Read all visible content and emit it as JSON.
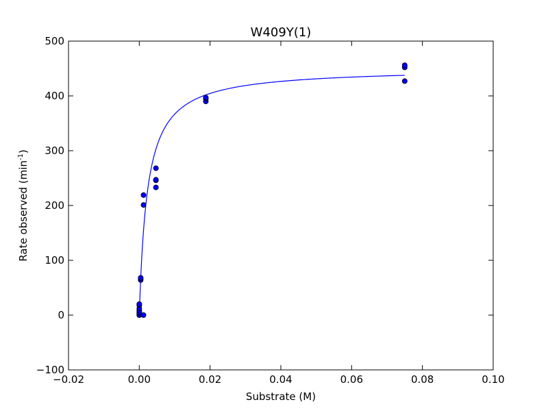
{
  "chart_data": {
    "type": "scatter",
    "title": "W409Y(1)",
    "xlabel": "Substrate (M)",
    "ylabel_main": "Rate observed (min",
    "ylabel_sup": "-1",
    "ylabel_close": ")",
    "xlim": [
      -0.02,
      0.1
    ],
    "ylim": [
      -100,
      500
    ],
    "xticks": [
      -0.02,
      0.0,
      0.02,
      0.04,
      0.06,
      0.08,
      0.1
    ],
    "xtick_labels": [
      "−0.02",
      "0.00",
      "0.02",
      "0.04",
      "0.06",
      "0.08",
      "0.10"
    ],
    "yticks": [
      -100,
      0,
      100,
      200,
      300,
      400,
      500
    ],
    "ytick_labels": [
      "−100",
      "0",
      "100",
      "200",
      "300",
      "400",
      "500"
    ],
    "grid": false,
    "series": [
      {
        "type": "scatter",
        "color": "#0000ff",
        "edge_color": "#000000",
        "points": [
          [
            0.0,
            0.0
          ],
          [
            0.0,
            2.0
          ],
          [
            0.0,
            5.0
          ],
          [
            0.0,
            8.0
          ],
          [
            0.0,
            12.0
          ],
          [
            0.0,
            18.0
          ],
          [
            0.0,
            20.0
          ],
          [
            0.0004,
            64.0
          ],
          [
            0.0004,
            67.0
          ],
          [
            0.0004,
            68.0
          ],
          [
            0.0012,
            0.0
          ],
          [
            0.0012,
            201.0
          ],
          [
            0.0012,
            219.0
          ],
          [
            0.0047,
            233.0
          ],
          [
            0.0047,
            246.0
          ],
          [
            0.0047,
            247.0
          ],
          [
            0.0047,
            268.0
          ],
          [
            0.0188,
            390.0
          ],
          [
            0.0188,
            395.0
          ],
          [
            0.0188,
            397.0
          ],
          [
            0.075,
            427.0
          ],
          [
            0.075,
            452.0
          ],
          [
            0.075,
            456.0
          ]
        ]
      },
      {
        "type": "line",
        "color": "#0000ff",
        "model": "michaelis-menten",
        "vmax": 451,
        "km": 0.0023,
        "x_range": [
          0.0,
          0.075
        ]
      }
    ]
  }
}
